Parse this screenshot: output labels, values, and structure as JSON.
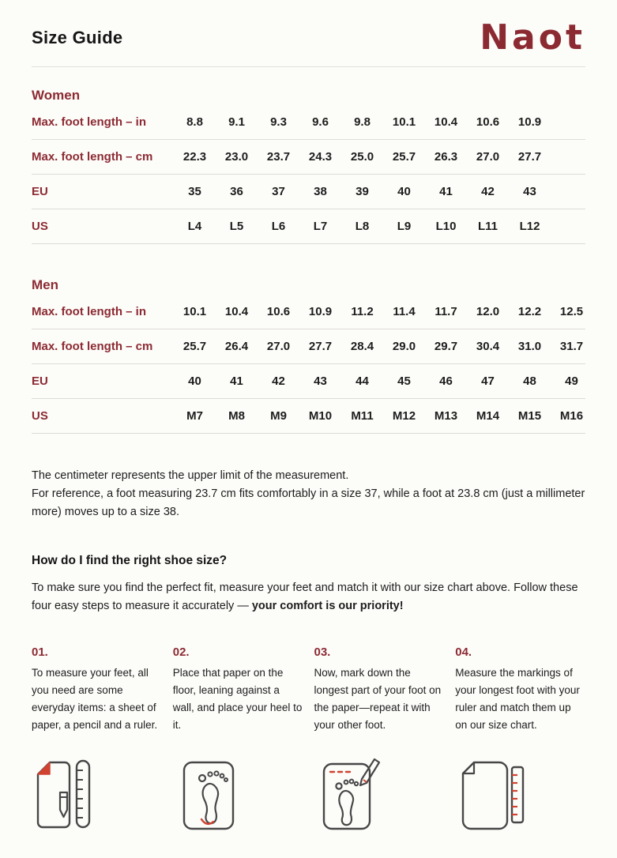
{
  "page": {
    "title": "Size Guide",
    "brand": "Naot"
  },
  "colors": {
    "brand": "#8c2a32",
    "icon_accent_red": "#cf4330",
    "icon_stroke": "#474747",
    "divider": "#dddcd6",
    "background": "#fcfcf9",
    "text": "#1d1d1d"
  },
  "women": {
    "heading": "Women",
    "rows": [
      {
        "label": "Max. foot length – in",
        "values": [
          "8.8",
          "9.1",
          "9.3",
          "9.6",
          "9.8",
          "10.1",
          "10.4",
          "10.6",
          "10.9"
        ]
      },
      {
        "label": "Max. foot length – cm",
        "values": [
          "22.3",
          "23.0",
          "23.7",
          "24.3",
          "25.0",
          "25.7",
          "26.3",
          "27.0",
          "27.7"
        ]
      },
      {
        "label": "EU",
        "values": [
          "35",
          "36",
          "37",
          "38",
          "39",
          "40",
          "41",
          "42",
          "43"
        ]
      },
      {
        "label": "US",
        "values": [
          "L4",
          "L5",
          "L6",
          "L7",
          "L8",
          "L9",
          "L10",
          "L11",
          "L12"
        ]
      }
    ]
  },
  "men": {
    "heading": "Men",
    "rows": [
      {
        "label": "Max. foot length – in",
        "values": [
          "10.1",
          "10.4",
          "10.6",
          "10.9",
          "11.2",
          "11.4",
          "11.7",
          "12.0",
          "12.2",
          "12.5"
        ]
      },
      {
        "label": "Max. foot length – cm",
        "values": [
          "25.7",
          "26.4",
          "27.0",
          "27.7",
          "28.4",
          "29.0",
          "29.7",
          "30.4",
          "31.0",
          "31.7"
        ]
      },
      {
        "label": "EU",
        "values": [
          "40",
          "41",
          "42",
          "43",
          "44",
          "45",
          "46",
          "47",
          "48",
          "49"
        ]
      },
      {
        "label": "US",
        "values": [
          "M7",
          "M8",
          "M9",
          "M10",
          "M11",
          "M12",
          "M13",
          "M14",
          "M15",
          "M16"
        ]
      }
    ]
  },
  "notes": {
    "lines": [
      "The centimeter represents the upper limit of the measurement.",
      "For reference, a foot measuring 23.7 cm fits comfortably in a size 37, while a foot at 23.8 cm (just a millimeter more) moves up to a size 38."
    ]
  },
  "howto": {
    "heading": "How do I find the right shoe size?",
    "intro_normal": "To make sure you find the perfect fit, measure your feet and match it with our size chart above. Follow these four easy steps to measure it accurately — ",
    "intro_bold": "your comfort is our priority!"
  },
  "steps": [
    {
      "number": "01.",
      "text": "To measure your feet, all you need are some everyday items: a sheet of paper, a pencil and a ruler.",
      "icon": "paper-ruler-pencil-icon"
    },
    {
      "number": "02.",
      "text": "Place that paper on the floor, leaning against a wall, and place your heel to it.",
      "icon": "paper-footprint-icon"
    },
    {
      "number": "03.",
      "text": "Now, mark down the longest part of your foot on the paper—repeat it with your other foot.",
      "icon": "paper-footprint-pencil-icon"
    },
    {
      "number": "04.",
      "text": "Measure the markings of your longest foot with your ruler and match them up on our size chart.",
      "icon": "paper-ruler-icon"
    }
  ]
}
